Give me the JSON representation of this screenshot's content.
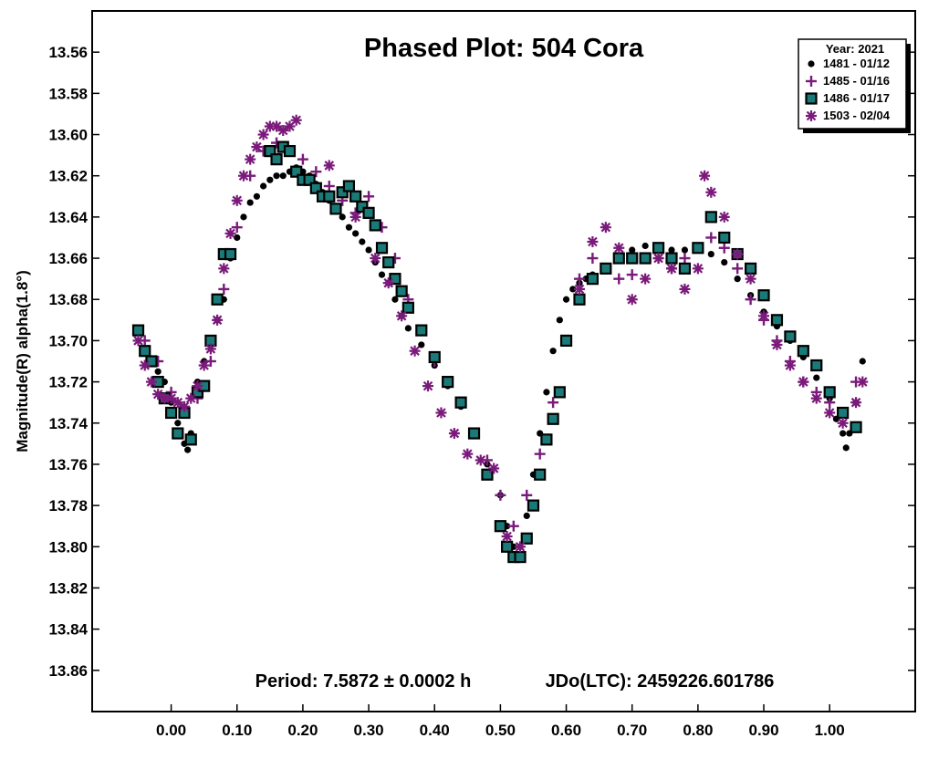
{
  "chart_data": {
    "type": "scatter",
    "title": "Phased Plot: 504 Cora",
    "xlabel": "",
    "ylabel": "Magnitude(R) alpha(1.8°)",
    "xlim": [
      -0.12,
      1.13
    ],
    "ylim": [
      13.88,
      13.54
    ],
    "x_ticks": [
      "0.00",
      "0.10",
      "0.20",
      "0.30",
      "0.40",
      "0.50",
      "0.60",
      "0.70",
      "0.80",
      "0.90",
      "1.00"
    ],
    "y_ticks": [
      "13.56",
      "13.58",
      "13.60",
      "13.62",
      "13.64",
      "13.66",
      "13.68",
      "13.70",
      "13.72",
      "13.74",
      "13.76",
      "13.78",
      "13.80",
      "13.82",
      "13.84",
      "13.86"
    ],
    "y_inverted": true,
    "grid": false,
    "legend": {
      "placement": "top-right",
      "title": "Year: 2021",
      "entries": [
        {
          "label": "1481 - 01/12",
          "marker": "dot",
          "color": "#000000"
        },
        {
          "label": "1485 - 01/16",
          "marker": "plus",
          "color": "#7a1a7a"
        },
        {
          "label": "1486 - 01/17",
          "marker": "square",
          "color": "#1a7a78"
        },
        {
          "label": "1503 - 02/04",
          "marker": "asterisk",
          "color": "#7a1a7a"
        }
      ]
    },
    "annotations": {
      "period": "Period: 7.5872 ± 0.0002 h",
      "epoch": "JDo(LTC): 2459226.601786"
    },
    "series": [
      {
        "name": "1481 - 01/12",
        "x": [
          -0.03,
          -0.02,
          -0.01,
          0.0,
          0.01,
          0.02,
          0.025,
          0.03,
          0.04,
          0.05,
          0.06,
          0.07,
          0.08,
          0.09,
          0.1,
          0.11,
          0.12,
          0.13,
          0.14,
          0.15,
          0.16,
          0.17,
          0.18,
          0.19,
          0.2,
          0.21,
          0.22,
          0.23,
          0.24,
          0.25,
          0.26,
          0.27,
          0.28,
          0.29,
          0.3,
          0.31,
          0.32,
          0.33,
          0.34,
          0.35,
          0.36,
          0.38,
          0.4,
          0.42,
          0.44,
          0.46,
          0.48,
          0.5,
          0.51,
          0.52,
          0.525,
          0.53,
          0.54,
          0.55,
          0.56,
          0.57,
          0.58,
          0.59,
          0.6,
          0.61,
          0.62,
          0.63,
          0.64,
          0.66,
          0.68,
          0.7,
          0.72,
          0.74,
          0.76,
          0.78,
          0.8,
          0.82,
          0.84,
          0.86,
          0.88,
          0.9,
          0.92,
          0.94,
          0.96,
          0.98,
          1.0,
          1.01,
          1.02,
          1.025,
          1.03,
          1.04,
          1.05
        ],
        "y": [
          13.71,
          13.715,
          13.72,
          13.73,
          13.74,
          13.75,
          13.753,
          13.745,
          13.72,
          13.71,
          13.7,
          13.69,
          13.68,
          13.66,
          13.65,
          13.64,
          13.633,
          13.63,
          13.625,
          13.622,
          13.62,
          13.62,
          13.618,
          13.616,
          13.618,
          13.62,
          13.624,
          13.628,
          13.632,
          13.636,
          13.64,
          13.645,
          13.648,
          13.652,
          13.656,
          13.662,
          13.668,
          13.672,
          13.68,
          13.688,
          13.694,
          13.702,
          13.712,
          13.722,
          13.732,
          13.745,
          13.76,
          13.775,
          13.79,
          13.8,
          13.806,
          13.8,
          13.785,
          13.765,
          13.745,
          13.725,
          13.705,
          13.69,
          13.68,
          13.675,
          13.672,
          13.67,
          13.668,
          13.664,
          13.66,
          13.656,
          13.654,
          13.655,
          13.656,
          13.656,
          13.655,
          13.658,
          13.662,
          13.67,
          13.678,
          13.686,
          13.693,
          13.7,
          13.708,
          13.718,
          13.728,
          13.738,
          13.745,
          13.752,
          13.745,
          13.73,
          13.71
        ]
      },
      {
        "name": "1485 - 01/16",
        "x": [
          -0.04,
          -0.02,
          0.0,
          0.02,
          0.04,
          0.06,
          0.08,
          0.1,
          0.12,
          0.14,
          0.16,
          0.18,
          0.2,
          0.22,
          0.24,
          0.26,
          0.28,
          0.3,
          0.32,
          0.34,
          0.36,
          0.38,
          0.4,
          0.42,
          0.44,
          0.46,
          0.48,
          0.5,
          0.52,
          0.54,
          0.56,
          0.58,
          0.6,
          0.62,
          0.64,
          0.66,
          0.68,
          0.7,
          0.72,
          0.74,
          0.76,
          0.78,
          0.8,
          0.82,
          0.84,
          0.86,
          0.88,
          0.9,
          0.92,
          0.94,
          0.96,
          0.98,
          1.0,
          1.02,
          1.04
        ],
        "y": [
          13.7,
          13.71,
          13.725,
          13.735,
          13.728,
          13.71,
          13.675,
          13.645,
          13.62,
          13.608,
          13.604,
          13.608,
          13.612,
          13.618,
          13.625,
          13.632,
          13.638,
          13.63,
          13.645,
          13.66,
          13.68,
          13.695,
          13.71,
          13.72,
          13.73,
          13.745,
          13.758,
          13.775,
          13.79,
          13.775,
          13.755,
          13.73,
          13.7,
          13.67,
          13.66,
          13.665,
          13.67,
          13.668,
          13.66,
          13.66,
          13.665,
          13.66,
          13.655,
          13.65,
          13.655,
          13.665,
          13.68,
          13.69,
          13.7,
          13.71,
          13.72,
          13.725,
          13.73,
          13.735,
          13.72
        ]
      },
      {
        "name": "1486 - 01/17",
        "x": [
          -0.05,
          -0.04,
          -0.03,
          -0.02,
          -0.01,
          0.0,
          0.01,
          0.02,
          0.03,
          0.04,
          0.05,
          0.06,
          0.07,
          0.08,
          0.09,
          0.15,
          0.16,
          0.17,
          0.18,
          0.19,
          0.2,
          0.21,
          0.22,
          0.23,
          0.24,
          0.25,
          0.26,
          0.27,
          0.28,
          0.29,
          0.3,
          0.31,
          0.32,
          0.33,
          0.34,
          0.35,
          0.36,
          0.38,
          0.4,
          0.42,
          0.44,
          0.46,
          0.48,
          0.5,
          0.51,
          0.52,
          0.53,
          0.54,
          0.55,
          0.56,
          0.57,
          0.58,
          0.59,
          0.6,
          0.62,
          0.64,
          0.66,
          0.68,
          0.7,
          0.72,
          0.74,
          0.76,
          0.78,
          0.8,
          0.82,
          0.84,
          0.86,
          0.88,
          0.9,
          0.92,
          0.94,
          0.96,
          0.98,
          1.0,
          1.02,
          1.04
        ],
        "y": [
          13.695,
          13.705,
          13.71,
          13.72,
          13.728,
          13.735,
          13.745,
          13.735,
          13.748,
          13.725,
          13.722,
          13.7,
          13.68,
          13.658,
          13.658,
          13.608,
          13.612,
          13.606,
          13.608,
          13.618,
          13.622,
          13.622,
          13.626,
          13.63,
          13.63,
          13.636,
          13.628,
          13.625,
          13.63,
          13.635,
          13.638,
          13.644,
          13.655,
          13.662,
          13.67,
          13.676,
          13.684,
          13.695,
          13.708,
          13.72,
          13.73,
          13.745,
          13.765,
          13.79,
          13.8,
          13.805,
          13.805,
          13.796,
          13.78,
          13.765,
          13.748,
          13.738,
          13.725,
          13.7,
          13.68,
          13.67,
          13.665,
          13.66,
          13.66,
          13.66,
          13.655,
          13.66,
          13.665,
          13.655,
          13.64,
          13.65,
          13.658,
          13.665,
          13.678,
          13.69,
          13.698,
          13.705,
          13.712,
          13.725,
          13.735,
          13.742
        ]
      },
      {
        "name": "1503 - 02/04",
        "x": [
          -0.05,
          -0.04,
          -0.03,
          -0.02,
          -0.01,
          0.0,
          0.01,
          0.02,
          0.03,
          0.04,
          0.05,
          0.06,
          0.07,
          0.08,
          0.09,
          0.1,
          0.11,
          0.12,
          0.13,
          0.14,
          0.15,
          0.16,
          0.17,
          0.18,
          0.19,
          0.24,
          0.28,
          0.31,
          0.33,
          0.35,
          0.37,
          0.39,
          0.41,
          0.43,
          0.45,
          0.47,
          0.49,
          0.51,
          0.53,
          0.62,
          0.64,
          0.66,
          0.68,
          0.7,
          0.72,
          0.74,
          0.76,
          0.78,
          0.8,
          0.81,
          0.82,
          0.84,
          0.86,
          0.88,
          0.9,
          0.92,
          0.94,
          0.96,
          0.98,
          1.0,
          1.02,
          1.04,
          1.05
        ],
        "y": [
          13.7,
          13.712,
          13.72,
          13.726,
          13.728,
          13.728,
          13.73,
          13.732,
          13.728,
          13.722,
          13.712,
          13.704,
          13.69,
          13.665,
          13.648,
          13.632,
          13.62,
          13.612,
          13.606,
          13.6,
          13.596,
          13.596,
          13.598,
          13.596,
          13.593,
          13.615,
          13.64,
          13.66,
          13.672,
          13.688,
          13.705,
          13.722,
          13.735,
          13.745,
          13.755,
          13.758,
          13.762,
          13.795,
          13.8,
          13.675,
          13.652,
          13.645,
          13.655,
          13.68,
          13.67,
          13.66,
          13.665,
          13.675,
          13.665,
          13.62,
          13.628,
          13.64,
          13.658,
          13.67,
          13.688,
          13.702,
          13.712,
          13.72,
          13.728,
          13.735,
          13.74,
          13.73,
          13.72
        ]
      }
    ]
  }
}
